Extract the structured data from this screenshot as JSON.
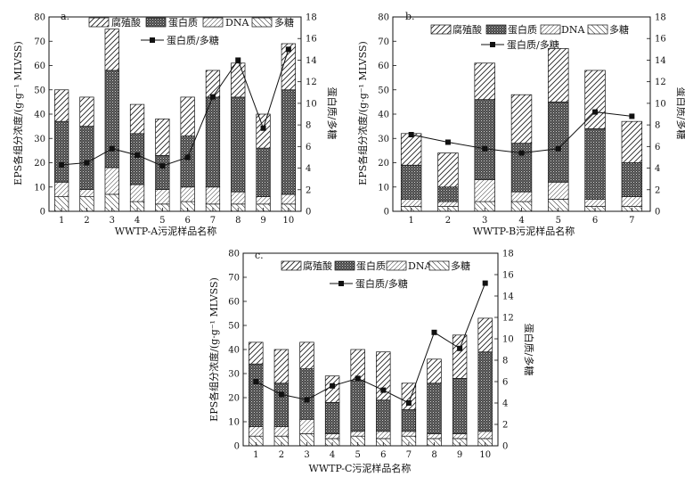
{
  "chart_data": [
    {
      "type": "bar",
      "panel_label": "a.",
      "title": "",
      "xlabel": "WWTP-A污泥样品名称",
      "ylabel": "EPS各组分浓度/(g·g⁻¹ MLVSS)",
      "y2label": "蛋白质/多糖",
      "categories": [
        "1",
        "2",
        "3",
        "4",
        "5",
        "6",
        "7",
        "8",
        "9",
        "10"
      ],
      "ylim": [
        0,
        80
      ],
      "yticks": [
        "0",
        "10",
        "20",
        "30",
        "40",
        "50",
        "60",
        "70",
        "80"
      ],
      "y2lim": [
        0,
        18
      ],
      "y2ticks": [
        "0",
        "2",
        "4",
        "6",
        "8",
        "10",
        "12",
        "14",
        "16",
        "18"
      ],
      "legend": [
        "腐殖酸",
        "蛋白质",
        "DNA",
        "多糖"
      ],
      "line_legend": "蛋白质/多糖",
      "series": [
        {
          "name": "多糖",
          "values": [
            6,
            6,
            7,
            4,
            3,
            4,
            3,
            3,
            3,
            3
          ]
        },
        {
          "name": "DNA",
          "values": [
            6,
            3,
            11,
            7,
            6,
            6,
            7,
            5,
            3,
            4
          ]
        },
        {
          "name": "蛋白质",
          "values": [
            25,
            26,
            40,
            21,
            14,
            21,
            37,
            39,
            20,
            43
          ]
        },
        {
          "name": "腐殖酸",
          "values": [
            13,
            12,
            17,
            12,
            15,
            16,
            11,
            14,
            14,
            19
          ]
        }
      ],
      "ratio": [
        4.3,
        4.5,
        5.8,
        5.2,
        4.2,
        5.0,
        10.6,
        14.0,
        7.7,
        15.0
      ]
    },
    {
      "type": "bar",
      "panel_label": "b.",
      "title": "",
      "xlabel": "WWTP-B污泥样品名称",
      "ylabel": "EPS各组分浓度/(g·g⁻¹ MLVSS)",
      "y2label": "蛋白质/多糖",
      "categories": [
        "1",
        "2",
        "3",
        "4",
        "5",
        "6",
        "7"
      ],
      "ylim": [
        0,
        80
      ],
      "yticks": [
        "0",
        "10",
        "20",
        "30",
        "40",
        "50",
        "60",
        "70",
        "80"
      ],
      "y2lim": [
        0,
        18
      ],
      "y2ticks": [
        "0",
        "2",
        "4",
        "6",
        "8",
        "10",
        "12",
        "14",
        "16",
        "18"
      ],
      "legend": [
        "腐殖酸",
        "蛋白质",
        "DNA",
        "多糖"
      ],
      "line_legend": "蛋白质/多糖",
      "series": [
        {
          "name": "多糖",
          "values": [
            2,
            2,
            4,
            4,
            5,
            2,
            2
          ]
        },
        {
          "name": "DNA",
          "values": [
            3,
            2,
            9,
            4,
            7,
            3,
            4
          ]
        },
        {
          "name": "蛋白质",
          "values": [
            14,
            6,
            33,
            20,
            33,
            29,
            14
          ]
        },
        {
          "name": "腐殖酸",
          "values": [
            13,
            14,
            15,
            20,
            22,
            24,
            17
          ]
        }
      ],
      "ratio": [
        7.1,
        6.4,
        5.8,
        5.4,
        5.8,
        9.2,
        8.8
      ]
    },
    {
      "type": "bar",
      "panel_label": "c.",
      "title": "",
      "xlabel": "WWTP-C污泥样品名称",
      "ylabel": "EPS各组分浓度/(g·g⁻¹ MLVSS)",
      "y2label": "蛋白质/多糖",
      "categories": [
        "1",
        "2",
        "3",
        "4",
        "5",
        "6",
        "7",
        "8",
        "9",
        "10"
      ],
      "ylim": [
        0,
        80
      ],
      "yticks": [
        "0",
        "10",
        "20",
        "30",
        "40",
        "50",
        "60",
        "70",
        "80"
      ],
      "y2lim": [
        0,
        18
      ],
      "y2ticks": [
        "0",
        "2",
        "4",
        "6",
        "8",
        "10",
        "12",
        "14",
        "16",
        "18"
      ],
      "legend": [
        "腐殖酸",
        "蛋白质",
        "DNA",
        "多糖"
      ],
      "line_legend": "蛋白质/多糖",
      "series": [
        {
          "name": "多糖",
          "values": [
            4,
            4,
            5,
            3,
            4,
            3,
            4,
            3,
            3,
            3
          ]
        },
        {
          "name": "DNA",
          "values": [
            4,
            4,
            6,
            2,
            2,
            3,
            2,
            2,
            2,
            3
          ]
        },
        {
          "name": "蛋白质",
          "values": [
            26,
            18,
            21,
            13,
            21,
            13,
            9,
            21,
            23,
            33
          ]
        },
        {
          "name": "腐殖酸",
          "values": [
            9,
            14,
            11,
            11,
            13,
            20,
            11,
            10,
            18,
            14
          ]
        }
      ],
      "ratio": [
        6.0,
        4.8,
        4.3,
        5.6,
        6.3,
        5.2,
        4.0,
        10.6,
        9.1,
        15.2
      ]
    }
  ]
}
